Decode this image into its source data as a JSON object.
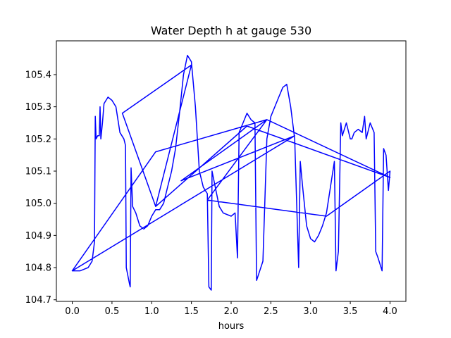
{
  "chart_data": {
    "type": "line",
    "title": "Water Depth h at gauge 530",
    "xlabel": "hours",
    "ylabel": "",
    "xlim": [
      -0.2,
      4.2
    ],
    "ylim": [
      104.695,
      105.505
    ],
    "xticks": [
      0.0,
      0.5,
      1.0,
      1.5,
      2.0,
      2.5,
      3.0,
      3.5,
      4.0
    ],
    "xtick_labels": [
      "0.0",
      "0.5",
      "1.0",
      "1.5",
      "2.0",
      "2.5",
      "3.0",
      "3.5",
      "4.0"
    ],
    "yticks": [
      104.7,
      104.8,
      104.9,
      105.0,
      105.1,
      105.2,
      105.3,
      105.4
    ],
    "ytick_labels": [
      "104.7",
      "104.8",
      "104.9",
      "105.0",
      "105.1",
      "105.2",
      "105.3",
      "105.4"
    ],
    "grid": false,
    "series": [
      {
        "color": "#0000ff",
        "points": [
          [
            0.0,
            104.79
          ],
          [
            0.1,
            104.79
          ],
          [
            0.2,
            104.8
          ],
          [
            0.25,
            104.82
          ],
          [
            0.28,
            104.88
          ],
          [
            0.29,
            105.27
          ],
          [
            0.3,
            105.2
          ],
          [
            0.32,
            105.21
          ],
          [
            0.34,
            105.21
          ],
          [
            0.35,
            105.3
          ],
          [
            0.36,
            105.2
          ],
          [
            0.38,
            105.25
          ],
          [
            0.4,
            105.31
          ],
          [
            0.45,
            105.33
          ],
          [
            0.5,
            105.32
          ],
          [
            0.55,
            105.3
          ],
          [
            0.6,
            105.22
          ],
          [
            0.65,
            105.2
          ],
          [
            0.67,
            105.18
          ],
          [
            0.68,
            104.8
          ],
          [
            0.72,
            104.75
          ],
          [
            0.73,
            104.74
          ],
          [
            0.74,
            105.11
          ],
          [
            0.75,
            105.05
          ],
          [
            0.76,
            104.99
          ],
          [
            0.8,
            104.97
          ],
          [
            0.85,
            104.93
          ],
          [
            0.9,
            104.92
          ],
          [
            0.95,
            104.93
          ],
          [
            1.0,
            104.96
          ],
          [
            1.05,
            104.98
          ],
          [
            1.1,
            104.98
          ],
          [
            1.15,
            105.0
          ],
          [
            1.2,
            105.05
          ],
          [
            1.25,
            105.1
          ],
          [
            1.3,
            105.17
          ],
          [
            1.35,
            105.28
          ],
          [
            1.4,
            105.4
          ],
          [
            1.45,
            105.46
          ],
          [
            1.5,
            105.44
          ],
          [
            1.55,
            105.3
          ],
          [
            1.6,
            105.1
          ],
          [
            1.65,
            105.05
          ],
          [
            1.7,
            105.03
          ],
          [
            1.72,
            104.74
          ],
          [
            1.75,
            104.73
          ],
          [
            1.76,
            105.1
          ],
          [
            1.8,
            105.05
          ],
          [
            1.85,
            104.99
          ],
          [
            1.9,
            104.97
          ],
          [
            2.0,
            104.96
          ],
          [
            2.05,
            104.97
          ],
          [
            2.08,
            104.83
          ],
          [
            2.1,
            105.22
          ],
          [
            2.15,
            105.25
          ],
          [
            2.2,
            105.28
          ],
          [
            2.25,
            105.26
          ],
          [
            2.3,
            105.25
          ],
          [
            2.32,
            104.76
          ],
          [
            2.4,
            104.82
          ],
          [
            2.45,
            105.2
          ],
          [
            2.5,
            105.27
          ],
          [
            2.55,
            105.3
          ],
          [
            2.6,
            105.33
          ],
          [
            2.65,
            105.36
          ],
          [
            2.7,
            105.37
          ],
          [
            2.75,
            105.3
          ],
          [
            2.8,
            105.2
          ],
          [
            2.85,
            104.8
          ],
          [
            2.87,
            105.13
          ],
          [
            2.9,
            105.05
          ],
          [
            2.95,
            104.93
          ],
          [
            3.0,
            104.89
          ],
          [
            3.05,
            104.88
          ],
          [
            3.1,
            104.9
          ],
          [
            3.15,
            104.93
          ],
          [
            3.2,
            104.97
          ],
          [
            3.25,
            105.05
          ],
          [
            3.3,
            105.13
          ],
          [
            3.32,
            104.79
          ],
          [
            3.35,
            104.85
          ],
          [
            3.38,
            105.25
          ],
          [
            3.4,
            105.21
          ],
          [
            3.45,
            105.25
          ],
          [
            3.5,
            105.2
          ],
          [
            3.52,
            105.2
          ],
          [
            3.55,
            105.22
          ],
          [
            3.6,
            105.23
          ],
          [
            3.65,
            105.22
          ],
          [
            3.68,
            105.27
          ],
          [
            3.7,
            105.2
          ],
          [
            3.75,
            105.25
          ],
          [
            3.8,
            105.22
          ],
          [
            3.82,
            104.85
          ],
          [
            3.85,
            104.83
          ],
          [
            3.9,
            104.79
          ],
          [
            3.92,
            105.17
          ],
          [
            3.95,
            105.15
          ],
          [
            3.98,
            105.04
          ],
          [
            4.0,
            105.1
          ],
          [
            3.2,
            104.96
          ],
          [
            1.7,
            105.01
          ],
          [
            2.45,
            105.26
          ],
          [
            1.37,
            105.07
          ],
          [
            2.8,
            105.21
          ],
          [
            0.0,
            104.79
          ],
          [
            1.05,
            105.16
          ],
          [
            2.45,
            105.26
          ],
          [
            4.0,
            105.08
          ],
          [
            2.2,
            105.24
          ],
          [
            1.05,
            104.99
          ],
          [
            0.63,
            105.28
          ],
          [
            1.5,
            105.43
          ],
          [
            1.05,
            104.99
          ]
        ]
      }
    ]
  }
}
